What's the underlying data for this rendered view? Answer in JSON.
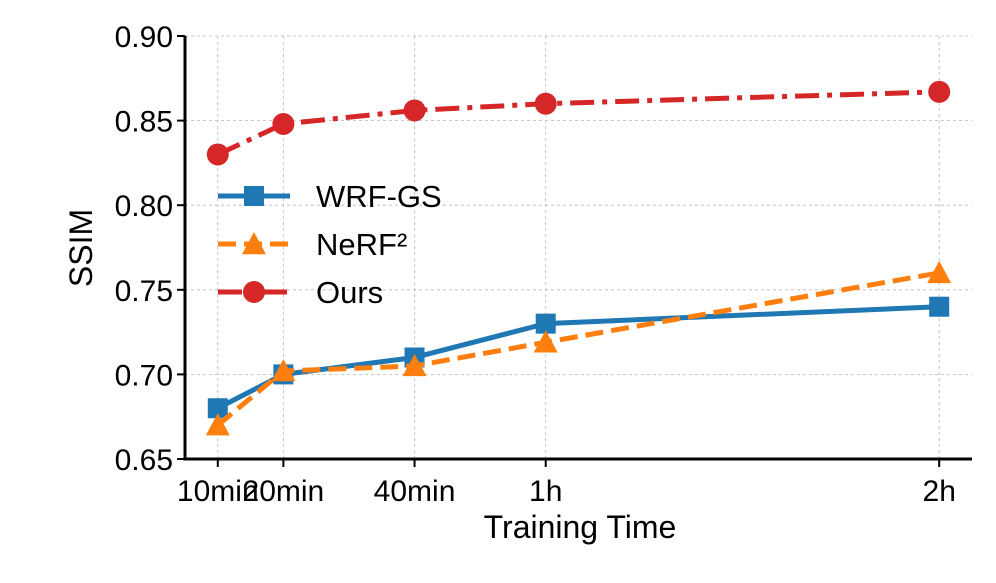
{
  "chart_data": {
    "type": "line",
    "title": "",
    "xlabel": "Training Time",
    "ylabel": "SSIM",
    "x_minutes": [
      10,
      20,
      40,
      60,
      120
    ],
    "categories": [
      "10min",
      "20min",
      "40min",
      "1h",
      "2h"
    ],
    "ylim": [
      0.65,
      0.9
    ],
    "yticks": [
      "0.65",
      "0.70",
      "0.75",
      "0.80",
      "0.85",
      "0.90"
    ],
    "grid": true,
    "legend_position": "center-left",
    "series": [
      {
        "name": "WRF-GS",
        "color": "#1f77b4",
        "marker": "square",
        "linestyle": "solid",
        "values": [
          0.68,
          0.7,
          0.71,
          0.73,
          0.74
        ]
      },
      {
        "name": "NeRF²",
        "color": "#ff7f0e",
        "marker": "triangle",
        "linestyle": "dashed",
        "values": [
          0.67,
          0.702,
          0.705,
          0.719,
          0.76
        ]
      },
      {
        "name": "Ours",
        "color": "#d62728",
        "marker": "circle",
        "linestyle": "dashdot",
        "values": [
          0.83,
          0.848,
          0.856,
          0.86,
          0.867
        ]
      }
    ]
  }
}
